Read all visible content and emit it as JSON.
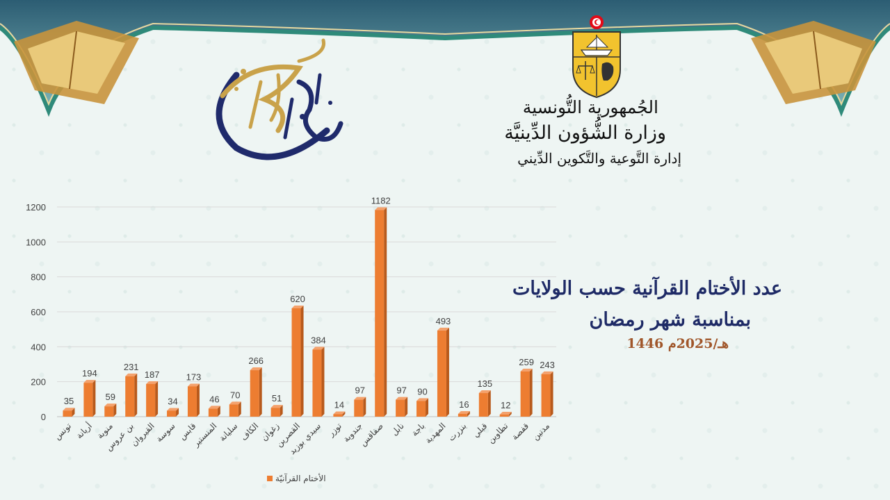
{
  "header": {
    "republic": "الجُمهورية التُّونسية",
    "ministry": "وزارة الشُّؤون الدِّينيَّة",
    "department": "إدارة التَّوعية والتَّكوين الدِّيني"
  },
  "title": {
    "line1": "عدد الأختام القرآنية حسب الولايات",
    "line2": "بمناسبة شهر رمضان",
    "line3": "1446 هـ/2025م"
  },
  "colors": {
    "bar": "#ed7d31",
    "bar_dark": "#b85a1c",
    "title": "#1e2a66",
    "frame_green": "#2f8a7a"
  },
  "icons": [
    "tunisia-coat-of-arms-icon",
    "ramadan-kareem-calligraphy-icon"
  ],
  "chart_data": {
    "type": "bar",
    "categories": [
      "تونس",
      "أريانة",
      "منوبة",
      "بن عروس",
      "القيروان",
      "سوسة",
      "قابس",
      "المنستير",
      "سليانة",
      "الكاف",
      "زغوان",
      "القصرين",
      "سيدي بوزيد",
      "توزر",
      "جندوبة",
      "صفاقس",
      "نابل",
      "باجة",
      "المهدية",
      "بنزرت",
      "قبلي",
      "تطاوين",
      "قفصة",
      "مدنين"
    ],
    "series": [
      {
        "name": "الأختام القرآنيّة",
        "values": [
          35,
          194,
          59,
          231,
          187,
          34,
          173,
          46,
          70,
          266,
          51,
          620,
          384,
          14,
          97,
          1182,
          97,
          90,
          493,
          16,
          135,
          12,
          259,
          243
        ]
      }
    ],
    "ylim": [
      0,
      1200
    ],
    "yticks": [
      0,
      200,
      400,
      600,
      800,
      1000,
      1200
    ],
    "grid": true,
    "legend": "bottom",
    "data_labels": true
  }
}
